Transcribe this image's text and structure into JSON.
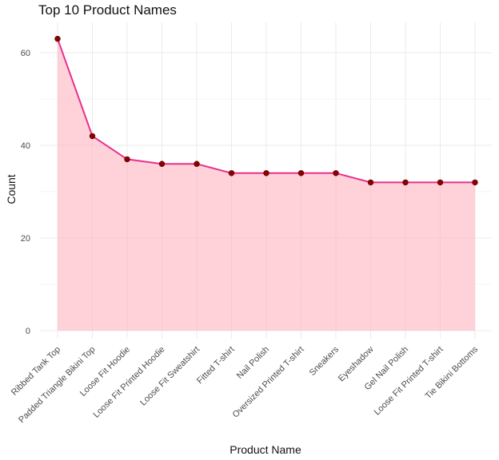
{
  "chart_data": {
    "type": "area",
    "title": "Top 10 Product Names",
    "xlabel": "Product Name",
    "ylabel": "Count",
    "categories": [
      "Ribbed Tank Top",
      "Padded Triangle Bikini Top",
      "Loose Fit Hoodie",
      "Loose Fit Printed Hoodie",
      "Loose Fit Sweatshirt",
      "Fitted T-shirt",
      "Nail Polish",
      "Oversized Printed T-shirt",
      "Sneakers",
      "Eyeshadow",
      "Gel Nail Polish",
      "Loose Fit Printed T-shirt",
      "Tie Bikini Bottoms"
    ],
    "values": [
      63,
      42,
      37,
      36,
      36,
      34,
      34,
      34,
      34,
      32,
      32,
      32,
      32
    ],
    "yticks": [
      "0",
      "20",
      "40",
      "60"
    ],
    "ylim": [
      0,
      66
    ],
    "grid": true,
    "colors": {
      "area_fill": "#ffb6c1",
      "line": "#e8308c",
      "point": "#8b0000"
    }
  }
}
